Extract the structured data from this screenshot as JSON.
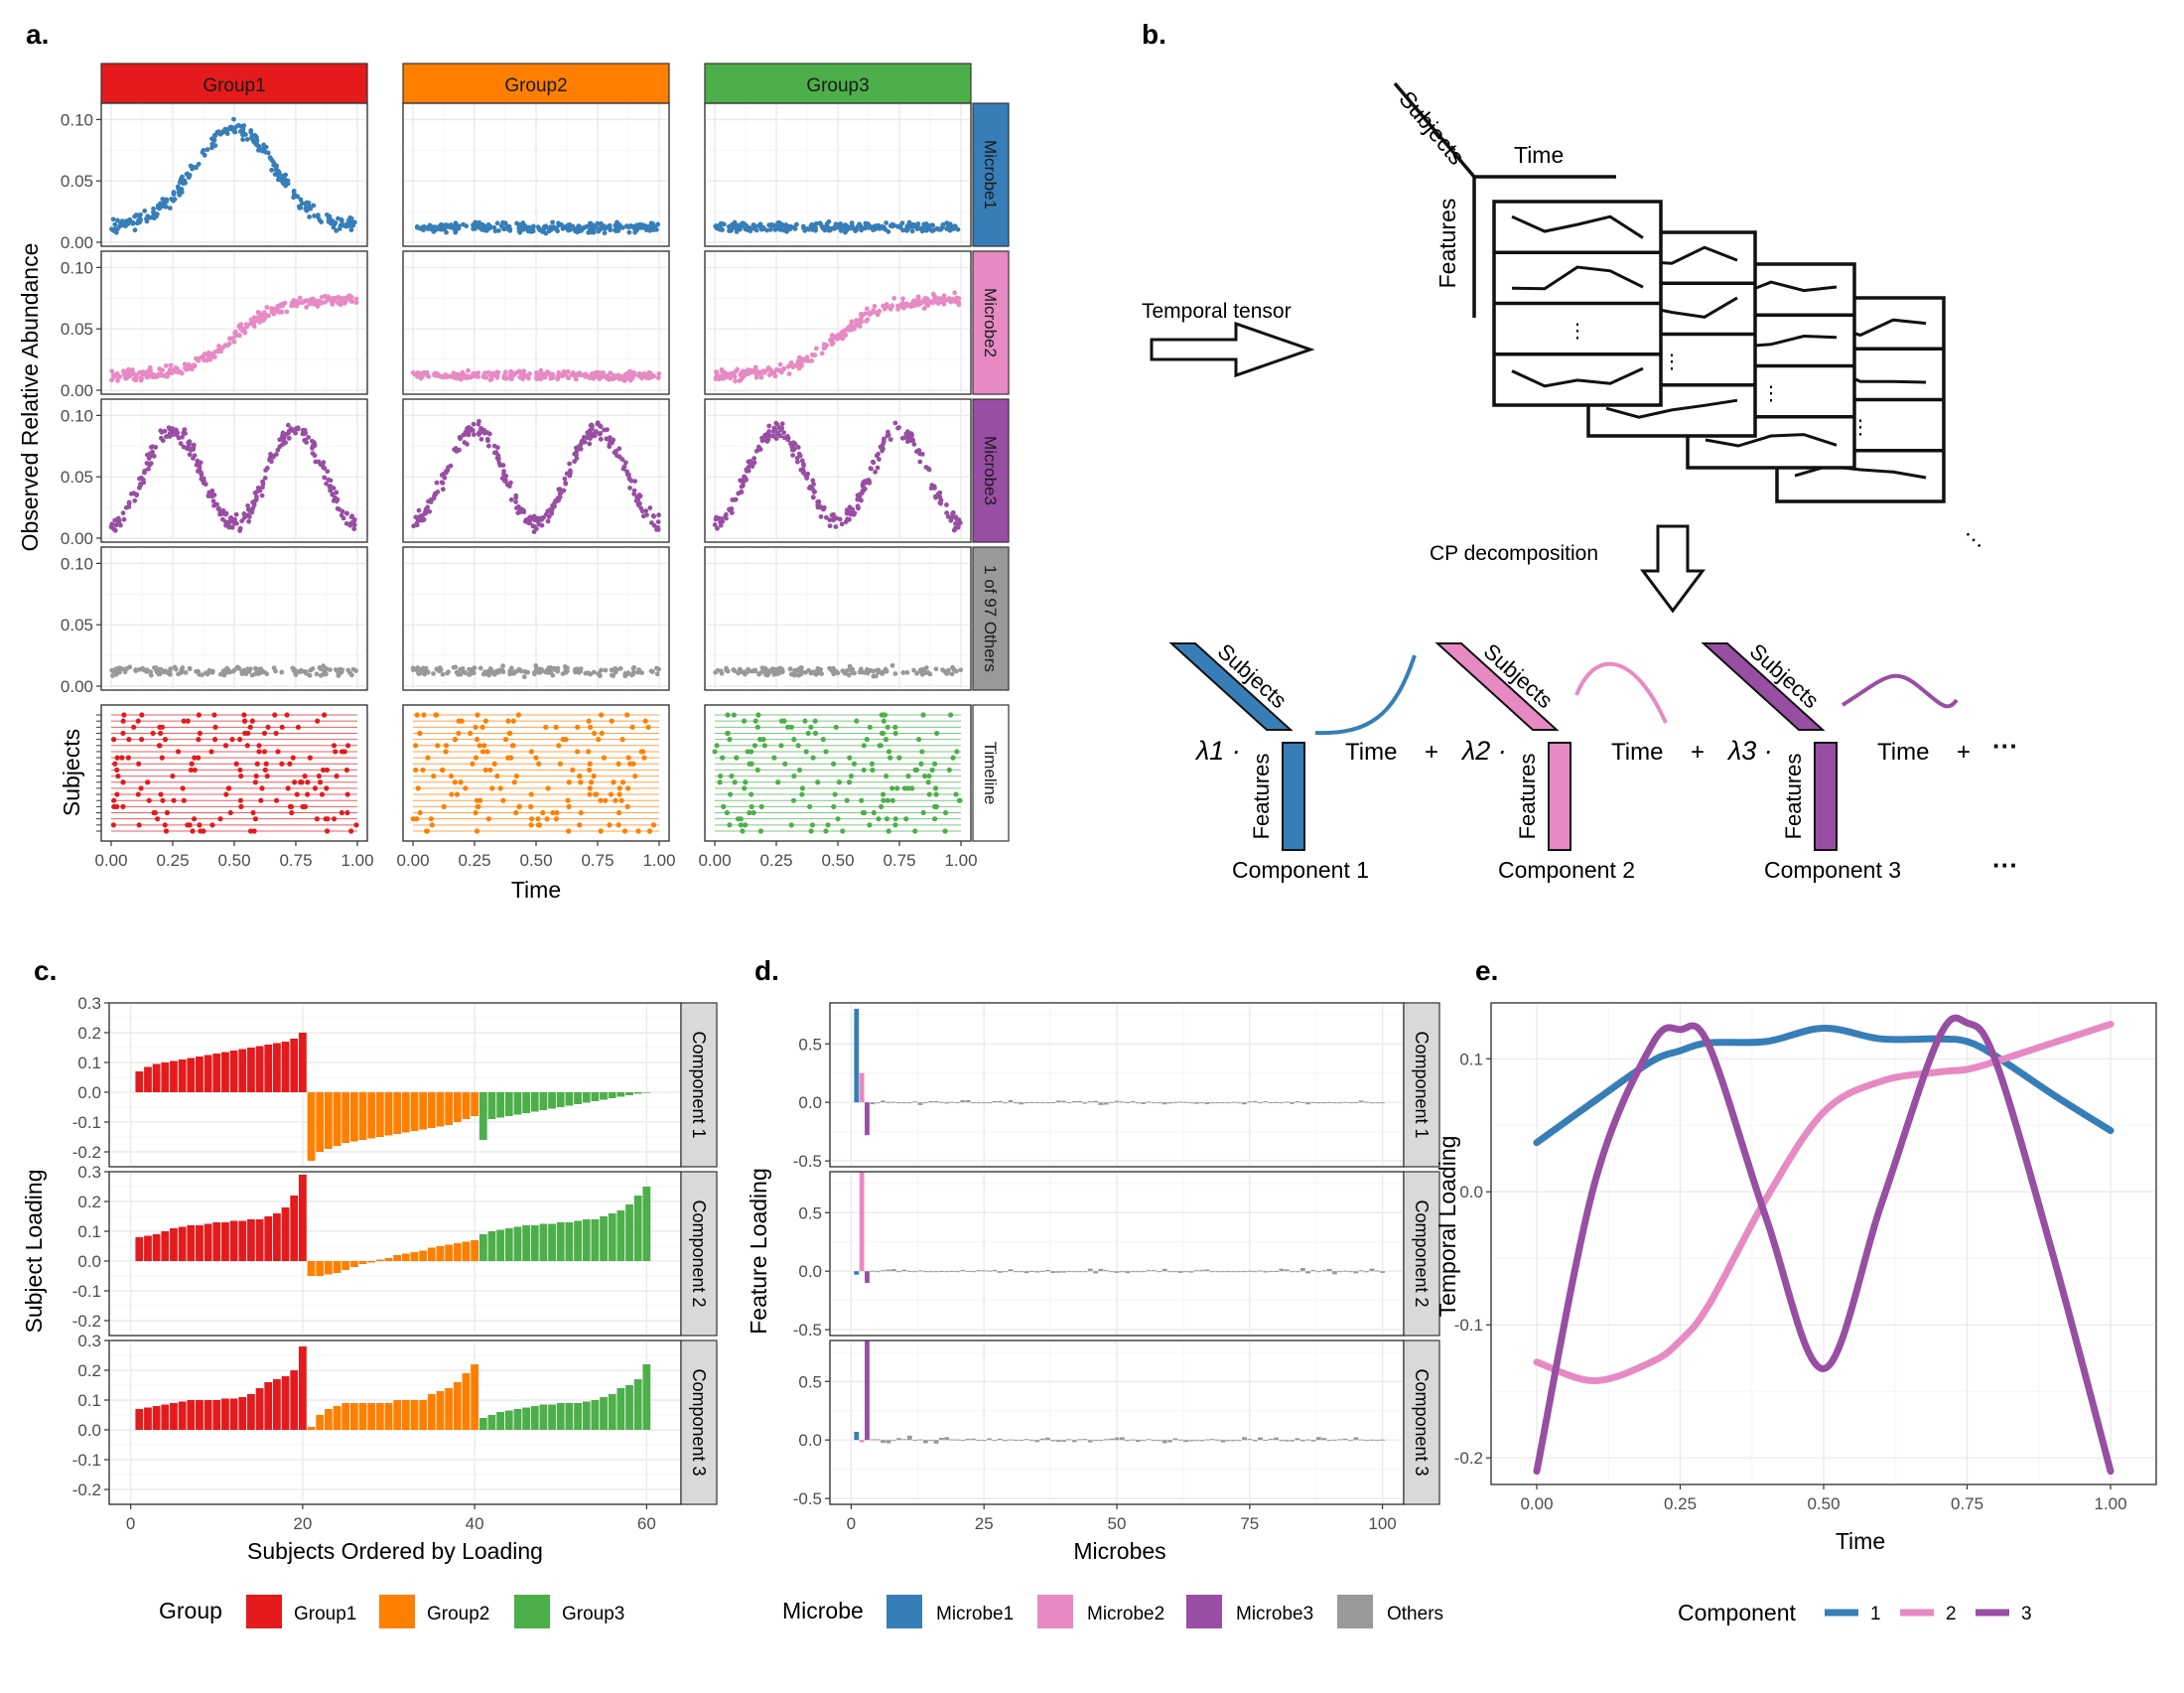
{
  "panel_labels": {
    "a": "a.",
    "b": "b.",
    "c": "c.",
    "d": "d.",
    "e": "e."
  },
  "colors": {
    "group1": "#E41A1C",
    "group2": "#FF7F00",
    "group3": "#4DAF4A",
    "microbe1": "#377EB8",
    "microbe2": "#E78AC3",
    "microbe3": "#984EA3",
    "others": "#999999",
    "strip_gray": "#D9D9D9"
  },
  "panel_a": {
    "groups": [
      "Group1",
      "Group2",
      "Group3"
    ],
    "rows": [
      "Microbe1",
      "Microbe2",
      "Microbe3",
      "1 of 97 Others",
      "Timeline"
    ],
    "ylabel": "Observed Relative Abundance",
    "timeline_ylabel": "Subjects",
    "xlabel": "Time",
    "y_ticks": [
      "0.00",
      "0.05",
      "0.10"
    ],
    "x_ticks": [
      "0.00",
      "0.25",
      "0.50",
      "0.75",
      "1.00"
    ]
  },
  "panel_b": {
    "subjects": "Subjects",
    "time": "Time",
    "features": "Features",
    "temporal_tensor": "Temporal tensor",
    "cp_decomposition": "CP decomposition",
    "components": [
      "Component 1",
      "Component 2",
      "Component 3"
    ],
    "lambdas": [
      "λ1 ·",
      "λ2 ·",
      "λ3 ·"
    ],
    "plus": "+",
    "ellipsis": "···",
    "vdots": "⋮"
  },
  "panel_c": {
    "ylabel": "Subject Loading",
    "xlabel": "Subjects Ordered by Loading",
    "strips": [
      "Component 1",
      "Component 2",
      "Component 3"
    ],
    "y_ticks": [
      "-0.2",
      "-0.1",
      "0.0",
      "0.1",
      "0.2",
      "0.3"
    ],
    "x_ticks": [
      "0",
      "20",
      "40",
      "60"
    ],
    "legend_title": "Group",
    "legend": [
      "Group1",
      "Group2",
      "Group3"
    ]
  },
  "panel_d": {
    "ylabel": "Feature Loading",
    "xlabel": "Microbes",
    "strips": [
      "Component 1",
      "Component 2",
      "Component 3"
    ],
    "y_ticks": [
      "-0.5",
      "0.0",
      "0.5"
    ],
    "x_ticks": [
      "0",
      "25",
      "50",
      "75",
      "100"
    ],
    "legend_title": "Microbe",
    "legend": [
      "Microbe1",
      "Microbe2",
      "Microbe3",
      "Others"
    ]
  },
  "panel_e": {
    "ylabel": "Temporal Loading",
    "xlabel": "Time",
    "y_ticks": [
      "-0.2",
      "-0.1",
      "0.0",
      "0.1"
    ],
    "x_ticks": [
      "0.00",
      "0.25",
      "0.50",
      "0.75",
      "1.00"
    ],
    "legend_title": "Component",
    "legend": [
      "1",
      "2",
      "3"
    ]
  },
  "chart_data": [
    {
      "type": "scatter",
      "panel": "a",
      "x_range": [
        0,
        1
      ],
      "ylim": [
        0,
        0.11
      ],
      "series": [
        {
          "name": "Microbe1",
          "group": "Group1",
          "approx_shape": [
            [
              0,
              0.015
            ],
            [
              0.25,
              0.055
            ],
            [
              0.5,
              0.095
            ],
            [
              0.75,
              0.055
            ],
            [
              1,
              0.015
            ]
          ]
        },
        {
          "name": "Microbe1",
          "group": "Group2",
          "approx_shape": [
            [
              0,
              0.012
            ],
            [
              1,
              0.012
            ]
          ]
        },
        {
          "name": "Microbe1",
          "group": "Group3",
          "approx_shape": [
            [
              0,
              0.012
            ],
            [
              1,
              0.012
            ]
          ]
        },
        {
          "name": "Microbe2",
          "group": "Group1",
          "approx_shape": [
            [
              0,
              0.012
            ],
            [
              0.25,
              0.02
            ],
            [
              0.5,
              0.045
            ],
            [
              0.75,
              0.065
            ],
            [
              1,
              0.075
            ]
          ]
        },
        {
          "name": "Microbe2",
          "group": "Group2",
          "approx_shape": [
            [
              0,
              0.012
            ],
            [
              1,
              0.012
            ]
          ]
        },
        {
          "name": "Microbe2",
          "group": "Group3",
          "approx_shape": [
            [
              0,
              0.012
            ],
            [
              0.25,
              0.02
            ],
            [
              0.5,
              0.045
            ],
            [
              0.75,
              0.065
            ],
            [
              1,
              0.075
            ]
          ]
        },
        {
          "name": "Microbe3",
          "group": "Group1",
          "approx_shape": [
            [
              0,
              0.025
            ],
            [
              0.25,
              0.09
            ],
            [
              0.5,
              0.01
            ],
            [
              0.75,
              0.09
            ],
            [
              1,
              0.025
            ]
          ]
        },
        {
          "name": "Microbe3",
          "group": "Group2",
          "approx_shape": [
            [
              0,
              0.025
            ],
            [
              0.25,
              0.09
            ],
            [
              0.5,
              0.01
            ],
            [
              0.75,
              0.09
            ],
            [
              1,
              0.025
            ]
          ]
        },
        {
          "name": "Microbe3",
          "group": "Group3",
          "approx_shape": [
            [
              0,
              0.025
            ],
            [
              0.25,
              0.09
            ],
            [
              0.5,
              0.01
            ],
            [
              0.75,
              0.09
            ],
            [
              1,
              0.025
            ]
          ]
        },
        {
          "name": "1 of 97 Others",
          "group": "Group1",
          "approx_shape": [
            [
              0,
              0.012
            ],
            [
              1,
              0.012
            ]
          ]
        },
        {
          "name": "1 of 97 Others",
          "group": "Group2",
          "approx_shape": [
            [
              0,
              0.012
            ],
            [
              1,
              0.012
            ]
          ]
        },
        {
          "name": "1 of 97 Others",
          "group": "Group3",
          "approx_shape": [
            [
              0,
              0.012
            ],
            [
              1,
              0.012
            ]
          ]
        }
      ]
    },
    {
      "type": "bar",
      "panel": "c",
      "x": "subject rank 1-60",
      "ylim": [
        -0.25,
        0.3
      ],
      "series": [
        {
          "name": "Component 1",
          "group1": [
            0.07,
            0.085,
            0.095,
            0.1,
            0.105,
            0.11,
            0.115,
            0.12,
            0.125,
            0.13,
            0.135,
            0.14,
            0.145,
            0.15,
            0.155,
            0.16,
            0.165,
            0.17,
            0.18,
            0.2
          ],
          "group2": [
            -0.23,
            -0.2,
            -0.19,
            -0.18,
            -0.17,
            -0.165,
            -0.16,
            -0.155,
            -0.15,
            -0.145,
            -0.14,
            -0.135,
            -0.13,
            -0.125,
            -0.12,
            -0.115,
            -0.11,
            -0.1,
            -0.09,
            -0.08
          ],
          "group3": [
            -0.16,
            -0.09,
            -0.085,
            -0.08,
            -0.075,
            -0.07,
            -0.065,
            -0.06,
            -0.055,
            -0.05,
            -0.045,
            -0.04,
            -0.035,
            -0.03,
            -0.025,
            -0.02,
            -0.015,
            -0.01,
            -0.005,
            -0.002
          ]
        },
        {
          "name": "Component 2",
          "group1": [
            0.08,
            0.085,
            0.09,
            0.1,
            0.11,
            0.115,
            0.12,
            0.12,
            0.125,
            0.13,
            0.13,
            0.135,
            0.135,
            0.14,
            0.14,
            0.15,
            0.16,
            0.18,
            0.22,
            0.29
          ],
          "group2": [
            -0.05,
            -0.05,
            -0.045,
            -0.04,
            -0.03,
            -0.02,
            -0.01,
            -0.005,
            0.005,
            0.01,
            0.02,
            0.025,
            0.03,
            0.035,
            0.045,
            0.05,
            0.055,
            0.06,
            0.065,
            0.07
          ],
          "group3": [
            0.09,
            0.1,
            0.105,
            0.11,
            0.115,
            0.12,
            0.12,
            0.125,
            0.125,
            0.13,
            0.13,
            0.135,
            0.14,
            0.14,
            0.15,
            0.16,
            0.17,
            0.19,
            0.22,
            0.25
          ]
        },
        {
          "name": "Component 3",
          "group1": [
            0.07,
            0.075,
            0.08,
            0.085,
            0.09,
            0.095,
            0.1,
            0.1,
            0.1,
            0.1,
            0.105,
            0.105,
            0.11,
            0.12,
            0.14,
            0.16,
            0.17,
            0.18,
            0.2,
            0.28
          ],
          "group2": [
            0.01,
            0.05,
            0.07,
            0.08,
            0.09,
            0.09,
            0.09,
            0.09,
            0.09,
            0.09,
            0.1,
            0.1,
            0.1,
            0.1,
            0.12,
            0.13,
            0.14,
            0.16,
            0.19,
            0.22
          ],
          "group3": [
            0.04,
            0.05,
            0.06,
            0.065,
            0.07,
            0.075,
            0.08,
            0.085,
            0.085,
            0.09,
            0.09,
            0.09,
            0.095,
            0.1,
            0.11,
            0.12,
            0.14,
            0.15,
            0.17,
            0.22
          ]
        }
      ]
    },
    {
      "type": "bar",
      "panel": "d",
      "x": "microbe index 1-100",
      "ylim": [
        -0.55,
        0.85
      ],
      "series": [
        {
          "name": "Component 1",
          "microbe1": 0.8,
          "microbe2": 0.25,
          "microbe3": -0.28,
          "others": "small noise within ±0.05"
        },
        {
          "name": "Component 2",
          "microbe1": -0.03,
          "microbe2": 0.85,
          "microbe3": -0.1,
          "others": "small noise within ±0.05"
        },
        {
          "name": "Component 3",
          "microbe1": 0.07,
          "microbe2": -0.02,
          "microbe3": 0.85,
          "others": "small noise within ±0.07"
        }
      ]
    },
    {
      "type": "line",
      "panel": "e",
      "xlabel": "Time",
      "ylabel": "Temporal Loading",
      "x": [
        0,
        0.1,
        0.2,
        0.25,
        0.3,
        0.4,
        0.5,
        0.6,
        0.7,
        0.75,
        0.8,
        0.9,
        1.0
      ],
      "ylim": [
        -0.22,
        0.14
      ],
      "series": [
        {
          "name": "1",
          "values": [
            0.037,
            0.068,
            0.098,
            0.106,
            0.112,
            0.113,
            0.123,
            0.115,
            0.115,
            0.113,
            0.102,
            0.073,
            0.046
          ]
        },
        {
          "name": "2",
          "values": [
            -0.128,
            -0.142,
            -0.128,
            -0.112,
            -0.085,
            -0.005,
            0.06,
            0.083,
            0.09,
            0.092,
            0.098,
            0.112,
            0.126
          ]
        },
        {
          "name": "3",
          "values": [
            -0.21,
            0.005,
            0.11,
            0.122,
            0.11,
            -0.02,
            -0.133,
            -0.01,
            0.115,
            0.127,
            0.098,
            -0.048,
            -0.21
          ]
        }
      ]
    }
  ]
}
